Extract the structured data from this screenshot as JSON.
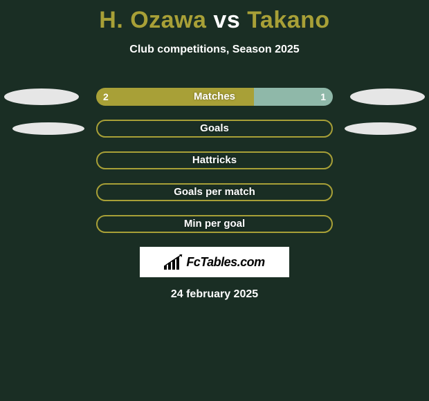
{
  "title": {
    "player1": "H. Ozawa",
    "vs": "vs",
    "player2": "Takano",
    "color_player1": "#a8a037",
    "color_vs": "#ffffff",
    "color_player2": "#a8a037"
  },
  "subtitle": "Club competitions, Season 2025",
  "colors": {
    "background": "#1a2e24",
    "bar_main": "#a8a037",
    "bar_alt": "#8fb8a9",
    "ellipse": "#e6e6e6",
    "text": "#ffffff",
    "logo_bg": "#ffffff",
    "logo_text": "#000000"
  },
  "rows": [
    {
      "label": "Matches",
      "left_value": "2",
      "right_value": "1",
      "left_pct": 66.7,
      "right_pct": 33.3,
      "fill_left_color": "#a8a037",
      "fill_right_color": "#8fb8a9",
      "outlined": false,
      "has_side_ellipses": true,
      "ellipse_small": false
    },
    {
      "label": "Goals",
      "left_value": "",
      "right_value": "",
      "left_pct": 0,
      "right_pct": 0,
      "outline_color": "#a8a037",
      "outlined": true,
      "has_side_ellipses": true,
      "ellipse_small": true
    },
    {
      "label": "Hattricks",
      "left_value": "",
      "right_value": "",
      "left_pct": 0,
      "right_pct": 0,
      "outline_color": "#a8a037",
      "outlined": true,
      "has_side_ellipses": false
    },
    {
      "label": "Goals per match",
      "left_value": "",
      "right_value": "",
      "left_pct": 0,
      "right_pct": 0,
      "outline_color": "#a8a037",
      "outlined": true,
      "has_side_ellipses": false
    },
    {
      "label": "Min per goal",
      "left_value": "",
      "right_value": "",
      "left_pct": 0,
      "right_pct": 0,
      "outline_color": "#a8a037",
      "outlined": true,
      "has_side_ellipses": false
    }
  ],
  "logo": {
    "text": "FcTables.com",
    "icon_color": "#000000"
  },
  "date": "24 february 2025"
}
